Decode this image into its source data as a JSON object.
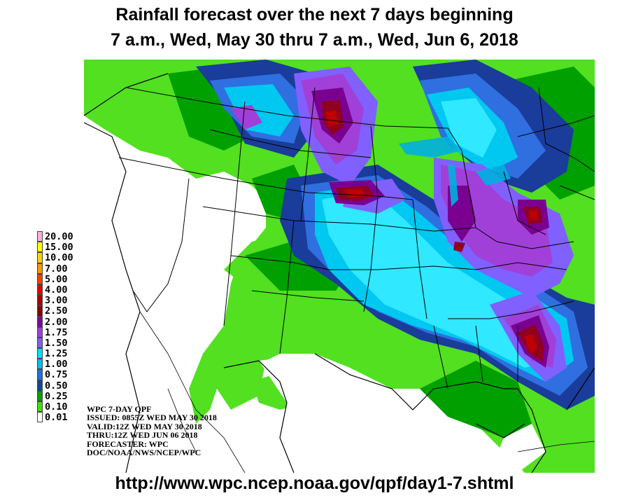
{
  "title_line1": "Rainfall forecast over the next 7 days beginning",
  "title_line2": "7 a.m., Wed, May 30 thru 7 a.m., Wed, Jun 6, 2018",
  "legend": [
    {
      "label": "20.00",
      "color": "#ffb0d8"
    },
    {
      "label": "15.00",
      "color": "#ffff00"
    },
    {
      "label": "10.00",
      "color": "#ffd000"
    },
    {
      "label": "7.00",
      "color": "#ff9800"
    },
    {
      "label": "5.00",
      "color": "#ff4000"
    },
    {
      "label": "4.00",
      "color": "#e00000"
    },
    {
      "label": "3.00",
      "color": "#a80000"
    },
    {
      "label": "2.50",
      "color": "#800000"
    },
    {
      "label": "2.00",
      "color": "#8000a0"
    },
    {
      "label": "1.75",
      "color": "#a040d8"
    },
    {
      "label": "1.50",
      "color": "#8060ff"
    },
    {
      "label": "1.25",
      "color": "#00e0ff"
    },
    {
      "label": "1.00",
      "color": "#00c0e8"
    },
    {
      "label": "0.75",
      "color": "#2070e0"
    },
    {
      "label": "0.50",
      "color": "#104890"
    },
    {
      "label": "0.25",
      "color": "#00a000"
    },
    {
      "label": "0.10",
      "color": "#40e000"
    },
    {
      "label": "0.01",
      "color": "#ffffff"
    }
  ],
  "info": {
    "line1": "WPC 7-DAY QPF",
    "line2": "ISSUED: 0855Z WED MAY 30 2018",
    "line3": "VALID:12Z WED MAY 30 2018",
    "line4": "THRU:12Z WED JUN 06 2018",
    "line5": "FORECASTER: WPC",
    "line6": "DOC/NOAA/NWS/NCEP/WPC"
  },
  "url": "http://www.wpc.ncep.noaa.gov/qpf/day1-7.shtml"
}
